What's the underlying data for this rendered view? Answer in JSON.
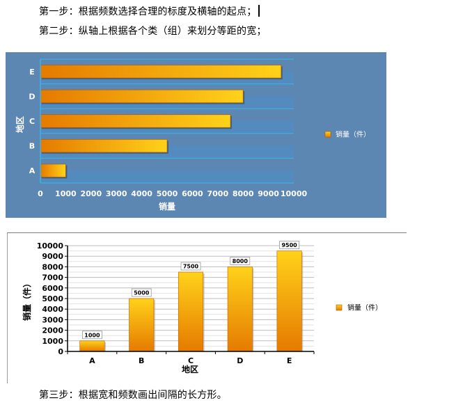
{
  "steps": {
    "step1": "第一步：根据频数选择合理的标度及横轴的起点；",
    "step2": "第二步：纵轴上根据各个类（组）来划分等距的宽；",
    "step3": "第三步：根据宽和频数画出间隔的长方形。"
  },
  "colors": {
    "panel_bg": "#5b87b2",
    "bar_start": "#e57a00",
    "bar_end": "#ffd21a",
    "gridline_blue": "#3bb4ea",
    "gridline_gray": "#c9c9c9"
  },
  "chart_data": [
    {
      "type": "bar",
      "orientation": "horizontal",
      "categories": [
        "A",
        "B",
        "C",
        "D",
        "E"
      ],
      "values": [
        1000,
        5000,
        7500,
        8000,
        9500
      ],
      "series": [
        {
          "name": "销量（件）",
          "values": [
            1000,
            5000,
            7500,
            8000,
            9500
          ]
        }
      ],
      "xlabel": "销量",
      "ylabel": "地区",
      "xlim": [
        0,
        10000
      ],
      "xticks": [
        "0",
        "1000",
        "2000",
        "3000",
        "4000",
        "5000",
        "6000",
        "7000",
        "8000",
        "9000",
        "10000"
      ],
      "legend": "right",
      "legend_label": "销量（件）"
    },
    {
      "type": "bar",
      "orientation": "vertical",
      "categories": [
        "A",
        "B",
        "C",
        "D",
        "E"
      ],
      "values": [
        1000,
        5000,
        7500,
        8000,
        9500
      ],
      "data_labels": [
        "1000",
        "5000",
        "7500",
        "8000",
        "9500"
      ],
      "series": [
        {
          "name": "销量（件）",
          "values": [
            1000,
            5000,
            7500,
            8000,
            9500
          ]
        }
      ],
      "xlabel": "地区",
      "ylabel": "销量（件）",
      "ylim": [
        0,
        10000
      ],
      "yticks": [
        "0",
        "1000",
        "2000",
        "3000",
        "4000",
        "5000",
        "6000",
        "7000",
        "8000",
        "9000",
        "10000"
      ],
      "grid": true,
      "legend": "right",
      "legend_label": "销量（件）"
    }
  ]
}
